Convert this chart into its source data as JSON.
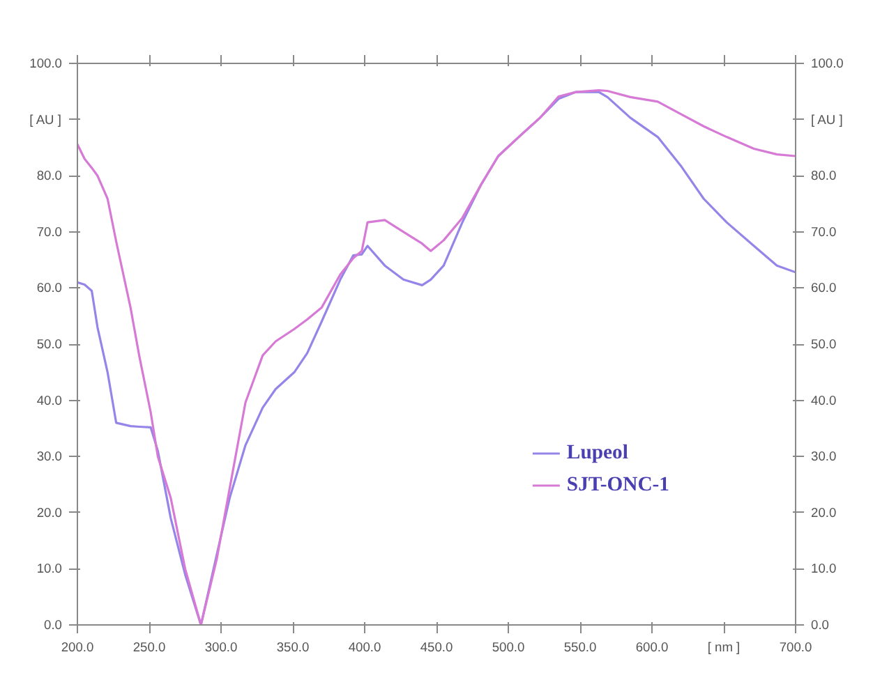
{
  "chart_data": {
    "type": "line",
    "x": [
      200,
      205,
      210,
      214,
      221,
      227,
      237,
      243,
      251,
      256,
      265,
      275,
      286,
      297,
      306,
      317,
      329,
      338,
      351,
      360,
      370,
      383,
      392,
      398,
      402,
      414,
      427,
      440,
      446,
      455,
      468,
      481,
      493,
      509,
      522,
      535,
      547,
      563,
      569,
      585,
      604,
      620,
      636,
      652,
      671,
      687,
      700
    ],
    "series": [
      {
        "name": "Lupeol",
        "color": "#9585e8",
        "values": [
          61.0,
          60.6,
          59.5,
          53.0,
          45.0,
          36.0,
          35.4,
          35.3,
          35.2,
          31.0,
          19.0,
          9.0,
          0.0,
          12.5,
          22.6,
          32.0,
          38.7,
          42.0,
          45.0,
          48.4,
          54.0,
          61.5,
          65.8,
          66.0,
          67.5,
          64.0,
          61.5,
          60.5,
          61.5,
          64.0,
          71.7,
          78.4,
          83.5,
          87.3,
          90.3,
          93.7,
          94.9,
          94.9,
          94.0,
          90.3,
          86.9,
          81.8,
          75.9,
          71.7,
          67.5,
          64.0,
          62.8
        ]
      },
      {
        "name": "SJT-ONC-1",
        "color": "#d67ad6",
        "values": [
          85.6,
          83.0,
          81.4,
          80.0,
          75.9,
          68.3,
          56.5,
          48.0,
          37.9,
          30.0,
          22.6,
          10.0,
          0.0,
          11.7,
          24.3,
          39.6,
          48.0,
          50.5,
          52.7,
          54.4,
          56.5,
          62.4,
          65.3,
          66.6,
          71.7,
          72.1,
          70.0,
          67.9,
          66.6,
          68.5,
          72.5,
          78.4,
          83.5,
          87.3,
          90.3,
          94.1,
          94.9,
          95.2,
          95.1,
          94.0,
          93.2,
          91.0,
          88.8,
          86.9,
          84.8,
          83.8,
          83.5
        ]
      }
    ],
    "xlim": [
      200,
      700
    ],
    "xticks": [
      {
        "value": 200,
        "label": "200.0"
      },
      {
        "value": 250,
        "label": "250.0"
      },
      {
        "value": 300,
        "label": "300.0"
      },
      {
        "value": 350,
        "label": "350.0"
      },
      {
        "value": 400,
        "label": "400.0"
      },
      {
        "value": 450,
        "label": "450.0"
      },
      {
        "value": 500,
        "label": "500.0"
      },
      {
        "value": 550,
        "label": "550.0"
      },
      {
        "value": 600,
        "label": "600.0"
      },
      {
        "value": 650,
        "label": "[ nm ]"
      },
      {
        "value": 700,
        "label": "700.0"
      }
    ],
    "ylim": [
      0,
      100
    ],
    "yticks": [
      {
        "value": 0,
        "label": "0.0"
      },
      {
        "value": 10,
        "label": "10.0"
      },
      {
        "value": 20,
        "label": "20.0"
      },
      {
        "value": 30,
        "label": "30.0"
      },
      {
        "value": 40,
        "label": "40.0"
      },
      {
        "value": 50,
        "label": "50.0"
      },
      {
        "value": 60,
        "label": "60.0"
      },
      {
        "value": 70,
        "label": "70.0"
      },
      {
        "value": 80,
        "label": "80.0"
      },
      {
        "value": 90,
        "label": "[ AU ]"
      },
      {
        "value": 100,
        "label": "100.0"
      }
    ],
    "y2lim": [
      0,
      100
    ],
    "y2ticks": [
      {
        "value": 0,
        "label": "0.0"
      },
      {
        "value": 10,
        "label": "10.0"
      },
      {
        "value": 20,
        "label": "20.0"
      },
      {
        "value": 30,
        "label": "30.0"
      },
      {
        "value": 40,
        "label": "40.0"
      },
      {
        "value": 50,
        "label": "50.0"
      },
      {
        "value": 60,
        "label": "60.0"
      },
      {
        "value": 70,
        "label": "70.0"
      },
      {
        "value": 80,
        "label": "80.0"
      },
      {
        "value": 90,
        "label": "[ AU ]"
      },
      {
        "value": 100,
        "label": "100.0"
      }
    ],
    "grid": false,
    "legend": "bottom right",
    "line_style": "solid"
  }
}
